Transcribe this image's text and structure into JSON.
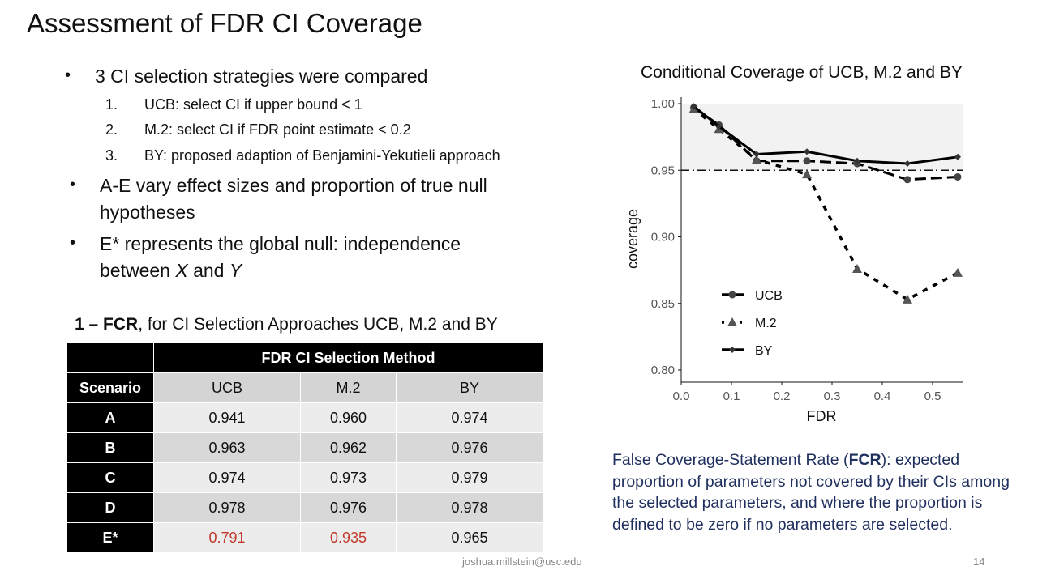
{
  "slide": {
    "title": "Assessment of FDR CI Coverage",
    "page_number": "14",
    "footer_email": "joshua.millstein@usc.edu",
    "bullets": [
      {
        "text": "3 CI selection strategies were compared",
        "subs": [
          {
            "num": "1.",
            "text": "UCB: select CI if upper bound < 1"
          },
          {
            "num": "2.",
            "text": "M.2: select CI if FDR point estimate < 0.2"
          },
          {
            "num": "3.",
            "text": "BY: proposed adaption of Benjamini-Yekutieli approach"
          }
        ]
      },
      {
        "line1": "A-E vary effect sizes and proportion of true null",
        "line2": "hypotheses"
      },
      {
        "line1": "E* represents the global null: independence",
        "line2_pre": "between ",
        "x": "X",
        "and": " and ",
        "y": "Y"
      }
    ],
    "bullet_icon": "bullet-dot"
  },
  "table": {
    "caption_bold": "1 – FCR",
    "caption_rest": ", for CI Selection Approaches UCB, M.2 and BY",
    "group_header": "FDR CI Selection Method",
    "row_header": "Scenario",
    "columns": [
      "UCB",
      "M.2",
      "BY"
    ],
    "rows": [
      {
        "scenario": "A",
        "values": [
          "0.941",
          "0.960",
          "0.974"
        ]
      },
      {
        "scenario": "B",
        "values": [
          "0.963",
          "0.962",
          "0.976"
        ]
      },
      {
        "scenario": "C",
        "values": [
          "0.974",
          "0.973",
          "0.979"
        ]
      },
      {
        "scenario": "D",
        "values": [
          "0.978",
          "0.976",
          "0.978"
        ]
      },
      {
        "scenario": "E*",
        "values": [
          "0.791",
          "0.935",
          "0.965"
        ],
        "highlight": [
          true,
          true,
          false
        ]
      }
    ],
    "highlight_color": "#c0392b"
  },
  "fcr_note": {
    "term": "False Coverage-Statement Rate (",
    "abbr": "FCR",
    "rest": "): expected proportion of parameters not covered by their CIs among the selected parameters, and where the proportion is defined to be zero if no parameters are selected."
  },
  "chart_data": {
    "type": "line",
    "title": "Conditional Coverage of UCB, M.2 and BY",
    "xlabel": "FDR",
    "ylabel": "coverage",
    "xlim": [
      0,
      0.56
    ],
    "ylim": [
      0.79,
      1.005
    ],
    "xticks": [
      "0.0",
      "0.1",
      "0.2",
      "0.3",
      "0.4",
      "0.5"
    ],
    "yticks": [
      "0.80",
      "0.85",
      "0.90",
      "0.95",
      "1.00"
    ],
    "x": [
      0.025,
      0.075,
      0.15,
      0.25,
      0.35,
      0.45,
      0.55
    ],
    "reference_line": 0.95,
    "shaded_band": [
      0.95,
      1.0
    ],
    "legend_placement": "bottom-left",
    "grid": false,
    "series": [
      {
        "name": "UCB",
        "values": [
          0.997,
          0.984,
          0.957,
          0.957,
          0.955,
          0.943,
          0.945
        ],
        "line": "dashed",
        "marker": "circle"
      },
      {
        "name": "M.2",
        "values": [
          0.996,
          0.981,
          0.958,
          0.947,
          0.876,
          0.853,
          0.873
        ],
        "line": "dotted",
        "marker": "triangle"
      },
      {
        "name": "BY",
        "values": [
          0.998,
          0.983,
          0.962,
          0.964,
          0.957,
          0.955,
          0.96
        ],
        "line": "solid",
        "marker": "diamond"
      }
    ]
  }
}
